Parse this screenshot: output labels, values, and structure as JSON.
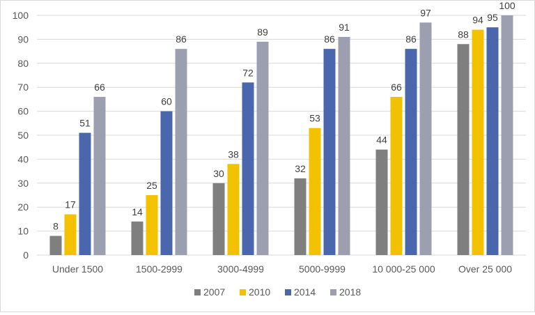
{
  "chart_data": {
    "type": "bar",
    "title": "",
    "xlabel": "",
    "ylabel": "",
    "ylim": [
      0,
      100
    ],
    "yticks": [
      "0",
      "10",
      "20",
      "30",
      "40",
      "50",
      "60",
      "70",
      "80",
      "90",
      "100"
    ],
    "grid": true,
    "legend_position": "bottom",
    "categories": [
      "Under 1500",
      "1500-2999",
      "3000-4999",
      "5000-9999",
      "10 000-25 000",
      "Over 25 000"
    ],
    "series": [
      {
        "name": "2007",
        "color": "#7f7f7f",
        "values": [
          8,
          14,
          30,
          32,
          44,
          88
        ]
      },
      {
        "name": "2010",
        "color": "#f2c200",
        "values": [
          17,
          25,
          38,
          53,
          66,
          94
        ]
      },
      {
        "name": "2014",
        "color": "#4a66ac",
        "values": [
          51,
          60,
          72,
          86,
          86,
          95
        ]
      },
      {
        "name": "2018",
        "color": "#9c9fb0",
        "values": [
          66,
          86,
          89,
          91,
          97,
          100
        ]
      }
    ]
  }
}
